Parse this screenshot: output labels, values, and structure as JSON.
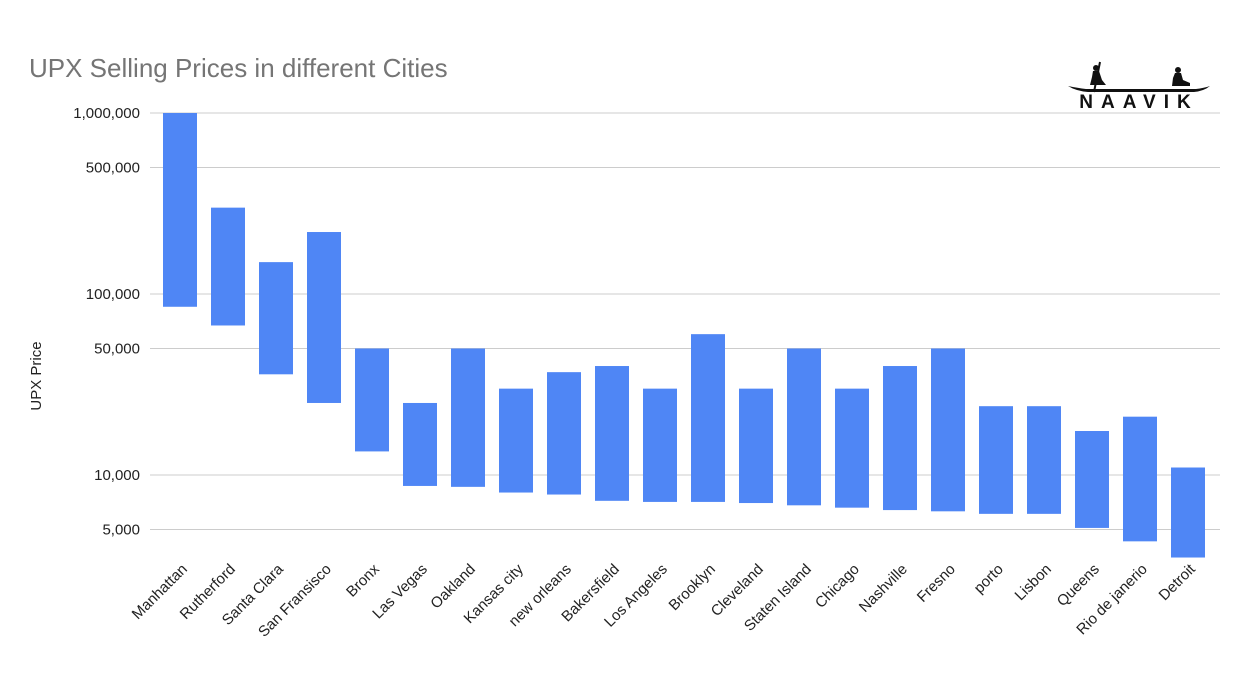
{
  "chart_data": {
    "type": "bar",
    "subtype": "floating-range",
    "title": "UPX Selling Prices in different Cities",
    "xlabel": "",
    "ylabel": "UPX Price",
    "yscale": "log",
    "ylim": [
      3000,
      1000000
    ],
    "yticks": [
      5000,
      10000,
      50000,
      100000,
      500000,
      1000000
    ],
    "ytick_labels": [
      "5,000",
      "10,000",
      "50,000",
      "100,000",
      "500,000",
      "1,000,000"
    ],
    "grid": true,
    "legend": "none",
    "bar_color": "#4f86f5",
    "categories": [
      "Manhattan",
      "Rutherford",
      "Santa Clara",
      "San Fransisco",
      "Bronx",
      "Las Vegas",
      "Oakland",
      "Kansas city",
      "new orleans",
      "Bakersfield",
      "Los Angeles",
      "Brooklyn",
      "Cleveland",
      "Staten Island",
      "Chicago",
      "Nashville",
      "Fresno",
      "porto",
      "Lisbon",
      "Queens",
      "Rio de janerio",
      "Detroit"
    ],
    "low": [
      85000,
      67000,
      36000,
      25000,
      13500,
      8700,
      8600,
      8000,
      7800,
      7200,
      7100,
      7100,
      7000,
      6800,
      6600,
      6400,
      6300,
      6100,
      6100,
      5100,
      4300,
      3500
    ],
    "high": [
      1000000,
      300000,
      150000,
      220000,
      50000,
      25000,
      50000,
      30000,
      37000,
      40000,
      30000,
      60000,
      30000,
      50000,
      30000,
      40000,
      50000,
      24000,
      24000,
      17500,
      21000,
      11000
    ]
  },
  "logo": {
    "text": "NAAVIK"
  }
}
